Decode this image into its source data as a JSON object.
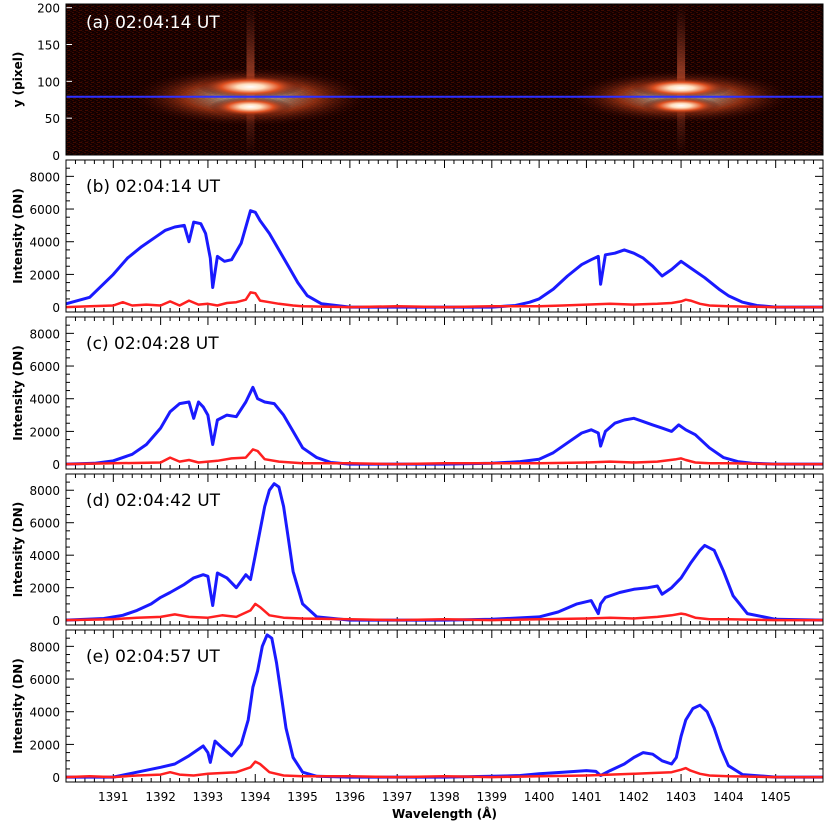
{
  "chart_data": [
    {
      "panel": "a",
      "type": "heatmap",
      "label": "(a) 02:04:14 UT",
      "ylabel": "y (pixel)",
      "xlim": [
        1390.0,
        1406.0
      ],
      "ylim": [
        0,
        205
      ],
      "yticks": [
        0,
        50,
        100,
        150,
        200
      ],
      "slit_y": 79,
      "colors": {
        "background": "#000000",
        "core": "#ffffff",
        "glow": "#c03010",
        "slit_line": "#3030ff"
      },
      "bright_regions": [
        {
          "center_x": 1393.9,
          "center_y": 79,
          "width_x": 1.6,
          "width_y": 45
        },
        {
          "center_x": 1403.0,
          "center_y": 79,
          "width_x": 1.5,
          "width_y": 40
        }
      ]
    },
    {
      "panel": "b",
      "type": "line",
      "label": "(b) 02:04:14 UT",
      "ylabel": "Intensity (DN)",
      "ylim": [
        -300,
        9000
      ],
      "yticks": [
        0,
        2000,
        4000,
        6000,
        8000
      ],
      "series": [
        {
          "color": "#1a1aff",
          "x": [
            1390.0,
            1390.5,
            1391.0,
            1391.3,
            1391.6,
            1391.9,
            1392.1,
            1392.3,
            1392.5,
            1392.6,
            1392.7,
            1392.85,
            1392.95,
            1393.05,
            1393.1,
            1393.2,
            1393.35,
            1393.5,
            1393.7,
            1393.9,
            1394.0,
            1394.1,
            1394.3,
            1394.5,
            1394.7,
            1394.9,
            1395.1,
            1395.4,
            1396.0,
            1397.0,
            1398.0,
            1399.0,
            1399.5,
            1399.8,
            1400.0,
            1400.3,
            1400.6,
            1400.9,
            1401.1,
            1401.25,
            1401.3,
            1401.4,
            1401.6,
            1401.8,
            1402.0,
            1402.2,
            1402.4,
            1402.6,
            1402.8,
            1403.0,
            1403.2,
            1403.5,
            1403.8,
            1404.0,
            1404.3,
            1404.6,
            1405.0,
            1406.0
          ],
          "y": [
            200,
            600,
            2000,
            3000,
            3700,
            4300,
            4700,
            4900,
            5000,
            4000,
            5200,
            5100,
            4500,
            3000,
            1200,
            3100,
            2800,
            2900,
            3900,
            5900,
            5800,
            5300,
            4500,
            3500,
            2500,
            1500,
            700,
            200,
            0,
            0,
            0,
            0,
            100,
            300,
            500,
            1100,
            1900,
            2600,
            2900,
            3100,
            1400,
            3200,
            3300,
            3500,
            3300,
            3000,
            2500,
            1900,
            2300,
            2800,
            2400,
            1800,
            1100,
            700,
            300,
            100,
            0,
            0
          ]
        },
        {
          "color": "#ff2020",
          "x": [
            1390.0,
            1390.5,
            1391.0,
            1391.2,
            1391.4,
            1391.7,
            1392.0,
            1392.2,
            1392.4,
            1392.6,
            1392.8,
            1393.0,
            1393.2,
            1393.4,
            1393.6,
            1393.8,
            1393.9,
            1394.0,
            1394.1,
            1394.3,
            1394.5,
            1394.8,
            1395.0,
            1396.0,
            1397.0,
            1398.0,
            1399.0,
            1400.0,
            1400.5,
            1401.0,
            1401.5,
            1402.0,
            1402.5,
            1402.8,
            1403.0,
            1403.1,
            1403.2,
            1403.4,
            1403.6,
            1404.0,
            1405.0,
            1406.0
          ],
          "y": [
            0,
            50,
            100,
            300,
            100,
            150,
            100,
            350,
            100,
            400,
            150,
            200,
            100,
            250,
            300,
            450,
            900,
            850,
            400,
            300,
            200,
            100,
            50,
            0,
            50,
            0,
            50,
            50,
            100,
            150,
            200,
            150,
            200,
            250,
            350,
            450,
            400,
            200,
            100,
            50,
            0,
            0
          ]
        }
      ]
    },
    {
      "panel": "c",
      "type": "line",
      "label": "(c) 02:04:28 UT",
      "ylabel": "Intensity (DN)",
      "ylim": [
        -300,
        9000
      ],
      "yticks": [
        0,
        2000,
        4000,
        6000,
        8000
      ],
      "series": [
        {
          "color": "#1a1aff",
          "x": [
            1390.0,
            1390.6,
            1391.0,
            1391.4,
            1391.7,
            1392.0,
            1392.2,
            1392.4,
            1392.6,
            1392.7,
            1392.8,
            1392.9,
            1393.0,
            1393.1,
            1393.2,
            1393.4,
            1393.6,
            1393.8,
            1393.95,
            1394.05,
            1394.2,
            1394.4,
            1394.6,
            1394.8,
            1395.0,
            1395.3,
            1395.6,
            1396.0,
            1397.0,
            1398.0,
            1399.0,
            1399.6,
            1400.0,
            1400.3,
            1400.6,
            1400.9,
            1401.1,
            1401.25,
            1401.3,
            1401.4,
            1401.6,
            1401.8,
            1402.0,
            1402.2,
            1402.4,
            1402.6,
            1402.8,
            1402.95,
            1403.1,
            1403.3,
            1403.6,
            1403.9,
            1404.2,
            1404.5,
            1405.0,
            1406.0
          ],
          "y": [
            0,
            50,
            200,
            600,
            1200,
            2200,
            3200,
            3700,
            3800,
            2800,
            3800,
            3500,
            3000,
            1200,
            2700,
            3000,
            2900,
            3800,
            4700,
            4000,
            3800,
            3700,
            3000,
            2000,
            1000,
            400,
            100,
            0,
            0,
            0,
            50,
            150,
            300,
            700,
            1300,
            1900,
            2100,
            1900,
            1100,
            2000,
            2500,
            2700,
            2800,
            2600,
            2400,
            2200,
            2000,
            2400,
            2100,
            1800,
            1000,
            400,
            150,
            50,
            0,
            0
          ]
        },
        {
          "color": "#ff2020",
          "x": [
            1390.0,
            1391.0,
            1392.0,
            1392.2,
            1392.4,
            1392.6,
            1392.8,
            1393.0,
            1393.2,
            1393.5,
            1393.8,
            1393.95,
            1394.05,
            1394.2,
            1394.5,
            1395.0,
            1396.0,
            1397.0,
            1398.0,
            1399.0,
            1400.0,
            1401.0,
            1401.5,
            1402.0,
            1402.5,
            1402.9,
            1403.0,
            1403.1,
            1403.3,
            1403.6,
            1404.0,
            1405.0,
            1406.0
          ],
          "y": [
            0,
            50,
            100,
            400,
            150,
            250,
            100,
            150,
            200,
            350,
            400,
            900,
            800,
            300,
            150,
            50,
            50,
            0,
            50,
            50,
            50,
            100,
            150,
            100,
            150,
            300,
            350,
            250,
            100,
            50,
            50,
            0,
            0
          ]
        }
      ]
    },
    {
      "panel": "d",
      "type": "line",
      "label": "(d) 02:04:42 UT",
      "ylabel": "Intensity (DN)",
      "ylim": [
        -300,
        9000
      ],
      "yticks": [
        0,
        2000,
        4000,
        6000,
        8000
      ],
      "series": [
        {
          "color": "#1a1aff",
          "x": [
            1390.0,
            1390.8,
            1391.2,
            1391.5,
            1391.8,
            1392.0,
            1392.2,
            1392.5,
            1392.7,
            1392.9,
            1393.0,
            1393.1,
            1393.2,
            1393.4,
            1393.6,
            1393.8,
            1393.9,
            1394.0,
            1394.1,
            1394.2,
            1394.3,
            1394.4,
            1394.5,
            1394.6,
            1394.7,
            1394.8,
            1395.0,
            1395.3,
            1396.0,
            1397.0,
            1398.0,
            1399.0,
            1400.0,
            1400.4,
            1400.8,
            1401.1,
            1401.25,
            1401.3,
            1401.4,
            1401.7,
            1402.0,
            1402.3,
            1402.5,
            1402.6,
            1402.8,
            1403.0,
            1403.2,
            1403.4,
            1403.5,
            1403.7,
            1403.9,
            1404.1,
            1404.4,
            1405.0,
            1406.0
          ],
          "y": [
            0,
            100,
            300,
            600,
            1000,
            1400,
            1700,
            2200,
            2600,
            2800,
            2700,
            900,
            2900,
            2600,
            2000,
            2800,
            2500,
            4000,
            5500,
            7000,
            8000,
            8400,
            8200,
            7000,
            5000,
            3000,
            1000,
            200,
            0,
            0,
            0,
            50,
            200,
            500,
            1000,
            1200,
            400,
            1000,
            1400,
            1700,
            1900,
            2000,
            2100,
            1600,
            2000,
            2600,
            3500,
            4300,
            4600,
            4300,
            3000,
            1500,
            400,
            50,
            0
          ]
        },
        {
          "color": "#ff2020",
          "x": [
            1390.0,
            1391.0,
            1391.5,
            1392.0,
            1392.3,
            1392.6,
            1393.0,
            1393.3,
            1393.6,
            1393.9,
            1394.0,
            1394.1,
            1394.3,
            1394.6,
            1395.0,
            1396.0,
            1397.0,
            1398.0,
            1399.0,
            1400.0,
            1401.0,
            1401.5,
            1402.0,
            1402.5,
            1402.8,
            1403.0,
            1403.1,
            1403.3,
            1403.6,
            1404.0,
            1405.0,
            1406.0
          ],
          "y": [
            0,
            50,
            150,
            200,
            350,
            200,
            150,
            300,
            200,
            600,
            1000,
            800,
            300,
            150,
            100,
            50,
            0,
            50,
            0,
            50,
            100,
            150,
            100,
            200,
            300,
            400,
            350,
            150,
            50,
            50,
            0,
            0
          ]
        }
      ]
    },
    {
      "panel": "e",
      "type": "line",
      "label": "(e) 02:04:57 UT",
      "ylabel": "Intensity (DN)",
      "xlabel": "Wavelength (Å)",
      "xlim": [
        1390.0,
        1406.0
      ],
      "xticks": [
        1391,
        1392,
        1393,
        1394,
        1395,
        1396,
        1397,
        1398,
        1399,
        1400,
        1401,
        1402,
        1403,
        1404,
        1405
      ],
      "ylim": [
        -300,
        9000
      ],
      "yticks": [
        0,
        2000,
        4000,
        6000,
        8000
      ],
      "series": [
        {
          "color": "#1a1aff",
          "x": [
            1390.0,
            1391.0,
            1391.5,
            1392.0,
            1392.3,
            1392.6,
            1392.8,
            1392.9,
            1393.0,
            1393.05,
            1393.15,
            1393.3,
            1393.5,
            1393.7,
            1393.85,
            1393.95,
            1394.05,
            1394.15,
            1394.25,
            1394.35,
            1394.45,
            1394.55,
            1394.65,
            1394.8,
            1395.0,
            1395.3,
            1396.0,
            1397.0,
            1398.0,
            1399.0,
            1399.6,
            1400.0,
            1400.5,
            1401.0,
            1401.2,
            1401.3,
            1401.5,
            1401.8,
            1402.0,
            1402.2,
            1402.4,
            1402.6,
            1402.8,
            1402.9,
            1403.0,
            1403.1,
            1403.25,
            1403.4,
            1403.55,
            1403.7,
            1403.85,
            1404.0,
            1404.3,
            1405.0,
            1406.0
          ],
          "y": [
            0,
            0,
            300,
            600,
            800,
            1300,
            1700,
            1900,
            1500,
            900,
            2200,
            1800,
            1300,
            2000,
            3500,
            5500,
            6500,
            8000,
            8700,
            8500,
            7000,
            5000,
            3000,
            1200,
            300,
            50,
            0,
            0,
            0,
            50,
            100,
            200,
            300,
            400,
            350,
            100,
            400,
            800,
            1200,
            1500,
            1400,
            1000,
            800,
            1200,
            2500,
            3500,
            4200,
            4400,
            4000,
            3000,
            1700,
            700,
            150,
            0,
            0
          ]
        },
        {
          "color": "#ff2020",
          "x": [
            1390.0,
            1390.5,
            1391.0,
            1391.5,
            1392.0,
            1392.2,
            1392.4,
            1392.7,
            1393.0,
            1393.3,
            1393.6,
            1393.9,
            1394.0,
            1394.1,
            1394.3,
            1394.6,
            1395.0,
            1396.0,
            1397.0,
            1398.0,
            1399.0,
            1400.0,
            1401.0,
            1401.5,
            1402.0,
            1402.4,
            1402.8,
            1403.0,
            1403.1,
            1403.2,
            1403.4,
            1403.6,
            1404.0,
            1405.0,
            1406.0
          ],
          "y": [
            0,
            50,
            0,
            100,
            150,
            300,
            150,
            100,
            200,
            250,
            300,
            600,
            950,
            800,
            300,
            100,
            50,
            50,
            0,
            50,
            0,
            50,
            100,
            150,
            200,
            250,
            300,
            450,
            550,
            400,
            200,
            100,
            50,
            0,
            0
          ]
        }
      ]
    }
  ]
}
